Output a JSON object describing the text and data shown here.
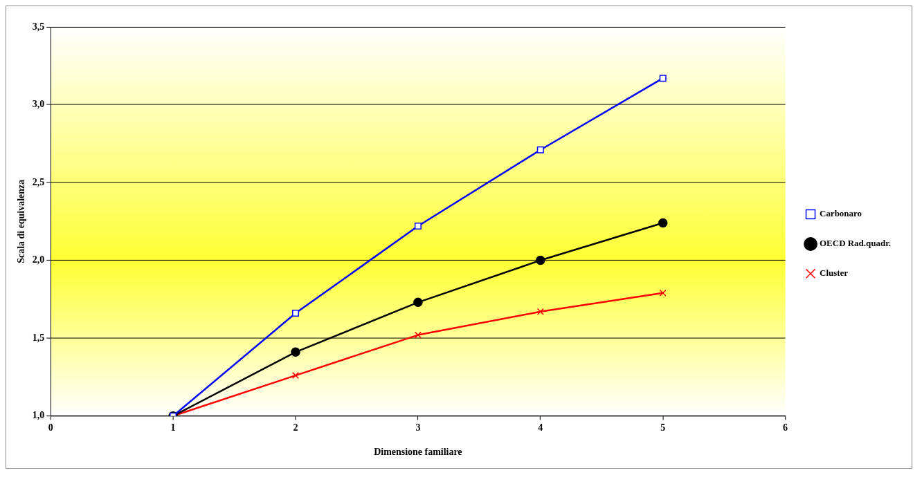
{
  "chart_data": {
    "type": "line",
    "xlabel": "Dimensione familiare",
    "ylabel": "Scala di equivalenza",
    "x": [
      1,
      2,
      3,
      4,
      5
    ],
    "series": [
      {
        "name": "Carbonaro",
        "color": "#0000ff",
        "marker": "square",
        "values": [
          1.0,
          1.66,
          2.22,
          2.71,
          3.17
        ]
      },
      {
        "name": "OECD Rad.quadr.",
        "color": "#000000",
        "marker": "circle",
        "values": [
          1.0,
          1.41,
          1.73,
          2.0,
          2.24
        ]
      },
      {
        "name": "Cluster",
        "color": "#ff0000",
        "marker": "cross",
        "values": [
          1.0,
          1.26,
          1.52,
          1.67,
          1.79
        ]
      }
    ],
    "xlim": [
      0,
      6
    ],
    "xticks": [
      0,
      1,
      2,
      3,
      4,
      5,
      6
    ],
    "ylim": [
      1.0,
      3.5
    ],
    "yticks": [
      {
        "value": 1.0,
        "label": "1,0"
      },
      {
        "value": 1.5,
        "label": "1,5"
      },
      {
        "value": 2.0,
        "label": "2,0"
      },
      {
        "value": 2.5,
        "label": "2,5"
      },
      {
        "value": 3.0,
        "label": "3,0"
      },
      {
        "value": 3.5,
        "label": "3,5"
      }
    ],
    "grid": "y",
    "legend": "right",
    "line_style": "solid"
  }
}
